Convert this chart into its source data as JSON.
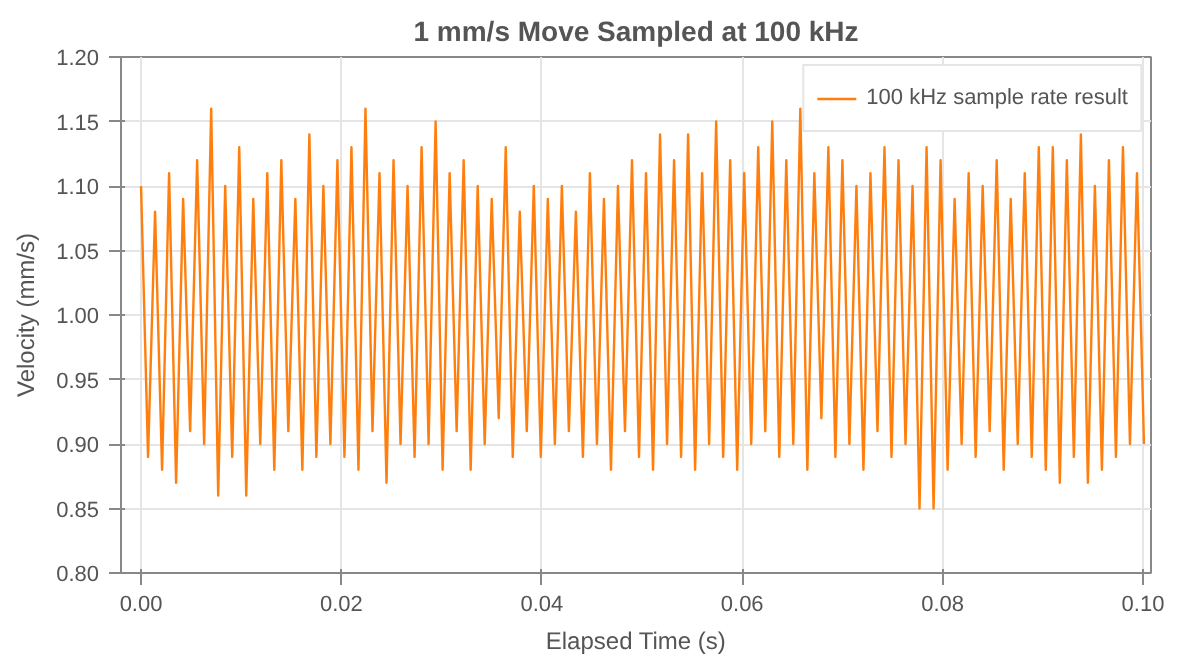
{
  "chart_data": {
    "type": "line",
    "title": "1 mm/s Move Sampled at 100 kHz",
    "xlabel": "Elapsed Time (s)",
    "ylabel": "Velocity (mm/s)",
    "xlim": [
      -0.002,
      0.1008
    ],
    "ylim": [
      0.8,
      1.2
    ],
    "xticks": [
      {
        "value": 0,
        "label": "0.00"
      },
      {
        "value": 0.02,
        "label": "0.02"
      },
      {
        "value": 0.04,
        "label": "0.04"
      },
      {
        "value": 0.06,
        "label": "0.06"
      },
      {
        "value": 0.08,
        "label": "0.08"
      },
      {
        "value": 0.1,
        "label": "0.10"
      }
    ],
    "yticks": [
      {
        "value": 0.8,
        "label": "0.80"
      },
      {
        "value": 0.85,
        "label": "0.85"
      },
      {
        "value": 0.9,
        "label": "0.90"
      },
      {
        "value": 0.95,
        "label": "0.95"
      },
      {
        "value": 1.0,
        "label": "1.00"
      },
      {
        "value": 1.05,
        "label": "1.05"
      },
      {
        "value": 1.1,
        "label": "1.10"
      },
      {
        "value": 1.15,
        "label": "1.15"
      },
      {
        "value": 1.2,
        "label": "1.20"
      }
    ],
    "grid": true,
    "legend": "top right",
    "x": [
      0,
      0.0007,
      0.0014,
      0.0021,
      0.0028,
      0.0035,
      0.0042,
      0.0049,
      0.0056,
      0.0063,
      0.007,
      0.0077,
      0.0084,
      0.0091,
      0.0098,
      0.0105,
      0.0112,
      0.0119,
      0.0126,
      0.0133,
      0.014,
      0.0147,
      0.0154,
      0.0161,
      0.0168,
      0.0175,
      0.0182,
      0.0189,
      0.0196,
      0.0203,
      0.021,
      0.0217,
      0.0224,
      0.0231,
      0.0238,
      0.0245,
      0.0252,
      0.0259,
      0.0266,
      0.0273,
      0.028,
      0.0287,
      0.0294,
      0.0301,
      0.0308,
      0.0315,
      0.0322,
      0.0329,
      0.0336,
      0.0343,
      0.035,
      0.0357,
      0.0364,
      0.0371,
      0.0378,
      0.0385,
      0.0392,
      0.0399,
      0.0406,
      0.0413,
      0.042,
      0.0427,
      0.0434,
      0.0441,
      0.0448,
      0.0455,
      0.0462,
      0.0469,
      0.0476,
      0.0483,
      0.049,
      0.0497,
      0.0504,
      0.0511,
      0.0518,
      0.0525,
      0.0532,
      0.0539,
      0.0546,
      0.0553,
      0.056,
      0.0567,
      0.0574,
      0.0581,
      0.0588,
      0.0595,
      0.0602,
      0.0609,
      0.0616,
      0.0623,
      0.063,
      0.0637,
      0.0644,
      0.0651,
      0.0658,
      0.0665,
      0.0672,
      0.0679,
      0.0686,
      0.0693,
      0.07,
      0.0707,
      0.0714,
      0.0721,
      0.0728,
      0.0735,
      0.0742,
      0.0749,
      0.0756,
      0.0763,
      0.077,
      0.0777,
      0.0784,
      0.0791,
      0.0798,
      0.0805,
      0.0812,
      0.0819,
      0.0826,
      0.0833,
      0.084,
      0.0847,
      0.0854,
      0.0861,
      0.0868,
      0.0875,
      0.0882,
      0.0889,
      0.0896,
      0.0903,
      0.091,
      0.0917,
      0.0924,
      0.0931,
      0.0938,
      0.0945,
      0.0952,
      0.0959,
      0.0966,
      0.0973,
      0.098,
      0.0987,
      0.0994,
      0.1001
    ],
    "series": [
      {
        "name": "100 kHz sample rate result",
        "color": "#ff7f0e",
        "values": [
          1.1,
          0.89,
          1.08,
          0.88,
          1.11,
          0.87,
          1.09,
          0.91,
          1.12,
          0.9,
          1.16,
          0.86,
          1.1,
          0.89,
          1.13,
          0.86,
          1.09,
          0.9,
          1.11,
          0.88,
          1.12,
          0.91,
          1.09,
          0.88,
          1.14,
          0.89,
          1.1,
          0.9,
          1.12,
          0.89,
          1.13,
          0.88,
          1.16,
          0.91,
          1.11,
          0.87,
          1.12,
          0.9,
          1.1,
          0.89,
          1.13,
          0.9,
          1.15,
          0.88,
          1.11,
          0.91,
          1.12,
          0.88,
          1.1,
          0.9,
          1.09,
          0.92,
          1.13,
          0.89,
          1.08,
          0.91,
          1.1,
          0.89,
          1.09,
          0.9,
          1.1,
          0.91,
          1.08,
          0.89,
          1.11,
          0.9,
          1.09,
          0.88,
          1.1,
          0.91,
          1.12,
          0.89,
          1.11,
          0.88,
          1.14,
          0.9,
          1.12,
          0.89,
          1.14,
          0.88,
          1.11,
          0.9,
          1.15,
          0.89,
          1.12,
          0.88,
          1.11,
          0.9,
          1.13,
          0.91,
          1.15,
          0.89,
          1.12,
          0.9,
          1.16,
          0.88,
          1.11,
          0.92,
          1.13,
          0.89,
          1.12,
          0.9,
          1.1,
          0.88,
          1.11,
          0.91,
          1.13,
          0.89,
          1.12,
          0.9,
          1.1,
          0.85,
          1.13,
          0.85,
          1.12,
          0.88,
          1.09,
          0.9,
          1.11,
          0.89,
          1.1,
          0.91,
          1.12,
          0.88,
          1.09,
          0.9,
          1.11,
          0.89,
          1.13,
          0.88,
          1.13,
          0.87,
          1.12,
          0.89,
          1.14,
          0.87,
          1.1,
          0.88,
          1.12,
          0.89,
          1.13,
          0.9,
          1.11,
          0.9
        ]
      }
    ]
  }
}
